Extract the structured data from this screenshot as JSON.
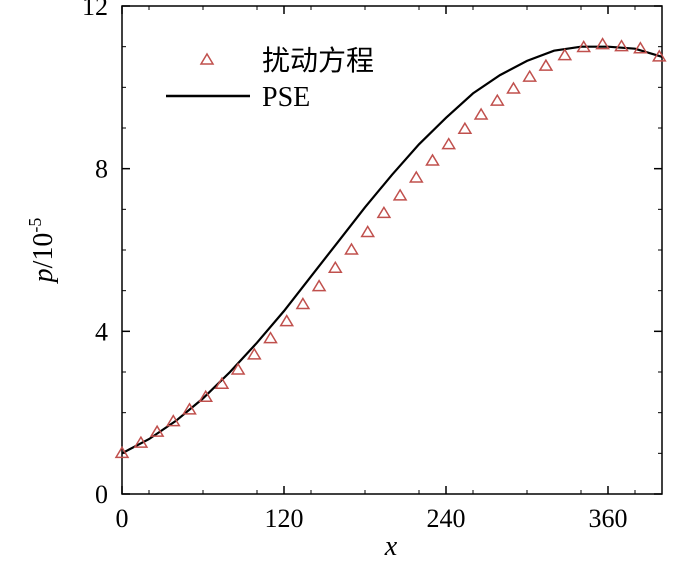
{
  "chart_data": {
    "type": "line",
    "title": "",
    "xlabel": "x",
    "ylabel_main": "p",
    "ylabel_unit": "/10",
    "ylabel_exp": "-5",
    "xlim": [
      0,
      400
    ],
    "ylim": [
      0,
      12
    ],
    "xticks": [
      0,
      120,
      240,
      360
    ],
    "yticks": [
      0,
      4,
      8,
      12
    ],
    "grid": false,
    "legend_position": "top-left",
    "series": [
      {
        "name": "扰动方程",
        "style": "triangle-markers",
        "color": "#c0504d",
        "x": [
          0,
          14,
          26,
          38,
          50,
          62,
          74,
          86,
          98,
          110,
          122,
          134,
          146,
          158,
          170,
          182,
          194,
          206,
          218,
          230,
          242,
          254,
          266,
          278,
          290,
          302,
          314,
          328,
          342,
          356,
          370,
          384,
          398
        ],
        "y": [
          1.0,
          1.25,
          1.52,
          1.78,
          2.07,
          2.38,
          2.7,
          3.05,
          3.42,
          3.82,
          4.24,
          4.66,
          5.1,
          5.55,
          6.0,
          6.43,
          6.9,
          7.33,
          7.77,
          8.19,
          8.59,
          8.97,
          9.32,
          9.66,
          9.96,
          10.25,
          10.52,
          10.78,
          10.98,
          11.05,
          11.0,
          10.95,
          10.75
        ]
      },
      {
        "name": "PSE",
        "style": "solid-line",
        "color": "#000000",
        "x": [
          0,
          20,
          40,
          60,
          80,
          100,
          120,
          140,
          160,
          180,
          200,
          220,
          240,
          260,
          280,
          300,
          320,
          340,
          360,
          380,
          400
        ],
        "y": [
          1.0,
          1.35,
          1.8,
          2.35,
          3.0,
          3.72,
          4.5,
          5.35,
          6.2,
          7.05,
          7.85,
          8.6,
          9.25,
          9.85,
          10.3,
          10.65,
          10.9,
          11.0,
          11.0,
          10.95,
          10.75
        ]
      }
    ]
  }
}
